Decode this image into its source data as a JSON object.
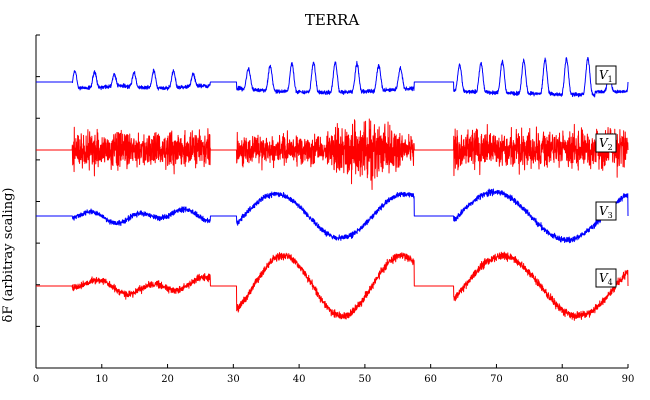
{
  "chart_data": {
    "type": "line",
    "title": "TERRA",
    "xlabel": "",
    "ylabel": "δF (arbitray scaling)",
    "xlim": [
      0,
      90
    ],
    "xticks": [
      0,
      10,
      20,
      30,
      40,
      50,
      60,
      70,
      80,
      90
    ],
    "x_tick_labels": [
      "0",
      "10",
      "20",
      "30",
      "40",
      "50",
      "60",
      "70",
      "80",
      "90"
    ],
    "y_tick_count": 9,
    "y_tick_labels_visible": false,
    "grid": false,
    "segments": [
      [
        5.5,
        26.5
      ],
      [
        30.5,
        57.5
      ],
      [
        63.5,
        90
      ]
    ],
    "series": [
      {
        "name": "V1",
        "label_base": "V",
        "label_sub": "1",
        "color": "#0000ff",
        "baseline": 0,
        "envelope": [
          {
            "x_range": [
              5.5,
              26.5
            ],
            "min": -0.1,
            "max": 0.45
          },
          {
            "x_range": [
              30.5,
              57.5
            ],
            "min": -0.3,
            "max": 1.0
          },
          {
            "x_range": [
              63.5,
              90
            ],
            "min": -0.6,
            "max": 1.1
          }
        ],
        "peaks": {
          "segment_1": [
            5.9,
            8.2,
            11.4,
            14.2,
            17.6,
            20.7,
            23.4,
            26.1
          ],
          "segment_2": [
            33.7,
            37.8,
            41.2,
            44.3,
            47.6,
            50.8,
            54.1,
            57.3
          ],
          "segment_3": [
            64.6,
            68.1,
            71.3,
            74.6,
            77.7,
            80.9,
            84.1,
            87.6
          ]
        }
      },
      {
        "name": "V2",
        "label_base": "V",
        "label_sub": "2",
        "color": "#ff0000",
        "baseline": 0,
        "envelope": [
          {
            "x_range": [
              5.5,
              26.5
            ],
            "min": -0.9,
            "max": 0.8
          },
          {
            "x_range": [
              30.5,
              57.5
            ],
            "min": -1.0,
            "max": 0.9
          },
          {
            "x_range": [
              63.5,
              90
            ],
            "min": -1.0,
            "max": 1.0
          }
        ]
      },
      {
        "name": "V3",
        "label_base": "V",
        "label_sub": "3",
        "color": "#0000ff",
        "baseline": 0,
        "envelope": [
          {
            "x_range": [
              5.5,
              26.5
            ],
            "min": -0.3,
            "max": 0.3
          },
          {
            "x_range": [
              30.5,
              57.5
            ],
            "min": -1.3,
            "max": 1.0
          },
          {
            "x_range": [
              63.5,
              90
            ],
            "min": -1.3,
            "max": 1.4
          }
        ],
        "troughs": [
          30.8,
          40.9,
          49.0,
          57.0,
          63.9,
          74.0,
          86.0
        ],
        "crests": [
          36.1,
          45.5,
          53.0,
          68.5,
          80.0,
          89.5
        ]
      },
      {
        "name": "V4",
        "label_base": "V",
        "label_sub": "4",
        "color": "#ff0000",
        "baseline": 0,
        "envelope": [
          {
            "x_range": [
              5.5,
              26.5
            ],
            "min": -0.5,
            "max": 0.4
          },
          {
            "x_range": [
              30.5,
              57.5
            ],
            "min": -1.9,
            "max": 1.5
          },
          {
            "x_range": [
              63.5,
              90
            ],
            "min": -2.0,
            "max": 1.7
          }
        ],
        "troughs": [
          30.8,
          39.6,
          51.0,
          57.0,
          64.0,
          74.3,
          85.7
        ],
        "crests": [
          34.6,
          46.4,
          55.7,
          68.6,
          80.2,
          90.0
        ]
      }
    ]
  }
}
